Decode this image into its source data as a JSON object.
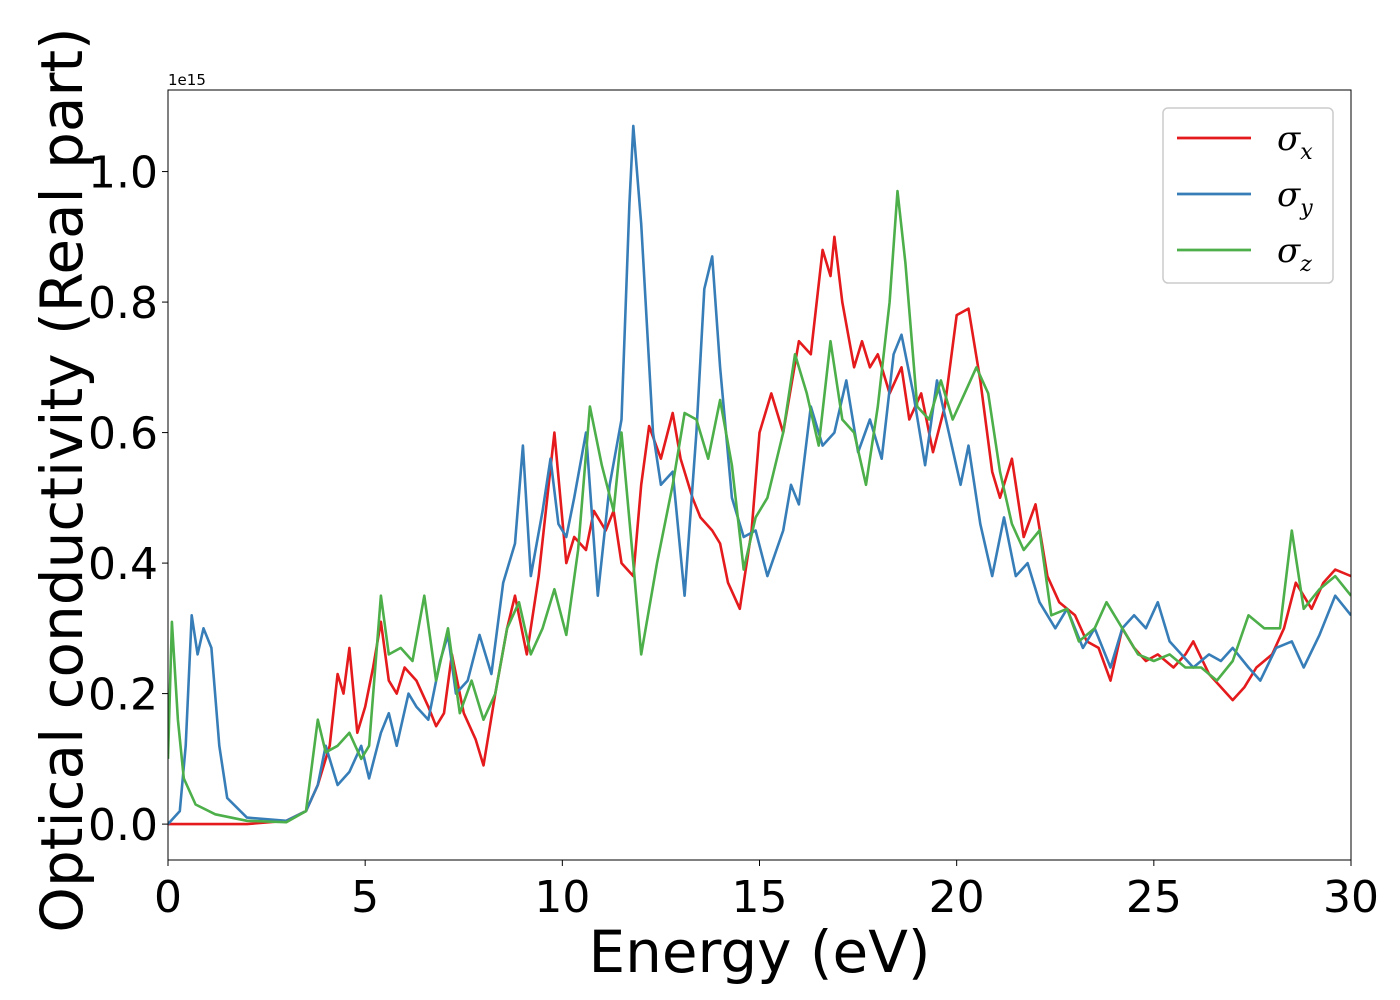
{
  "chart_data": {
    "type": "line",
    "title": "",
    "xlabel": "Energy (eV)",
    "ylabel": "Optical conductivity (Real part)",
    "y_offset_text": "1e15",
    "xlim": [
      0,
      30
    ],
    "ylim": [
      -0.055,
      1.125
    ],
    "x_ticks": [
      0,
      5,
      10,
      15,
      20,
      25,
      30
    ],
    "x_tick_labels": [
      "0",
      "5",
      "10",
      "15",
      "20",
      "25",
      "30"
    ],
    "y_ticks": [
      0.0,
      0.2,
      0.4,
      0.6,
      0.8,
      1.0
    ],
    "y_tick_labels": [
      "0.0",
      "0.2",
      "0.4",
      "0.6",
      "0.8",
      "1.0"
    ],
    "grid": false,
    "legend_position": "top-right",
    "series": [
      {
        "name": "σx",
        "symbol": "σ",
        "subscript": "x",
        "color": "#e41a1c",
        "points": [
          [
            0,
            0
          ],
          [
            1,
            0
          ],
          [
            2,
            0
          ],
          [
            3,
            0.005
          ],
          [
            3.5,
            0.02
          ],
          [
            3.8,
            0.06
          ],
          [
            4.1,
            0.12
          ],
          [
            4.3,
            0.23
          ],
          [
            4.45,
            0.2
          ],
          [
            4.6,
            0.27
          ],
          [
            4.8,
            0.14
          ],
          [
            5.0,
            0.18
          ],
          [
            5.2,
            0.24
          ],
          [
            5.4,
            0.31
          ],
          [
            5.6,
            0.22
          ],
          [
            5.8,
            0.2
          ],
          [
            6.0,
            0.24
          ],
          [
            6.3,
            0.22
          ],
          [
            6.6,
            0.18
          ],
          [
            6.8,
            0.15
          ],
          [
            7.0,
            0.17
          ],
          [
            7.2,
            0.26
          ],
          [
            7.5,
            0.17
          ],
          [
            7.8,
            0.13
          ],
          [
            8.0,
            0.09
          ],
          [
            8.3,
            0.2
          ],
          [
            8.6,
            0.3
          ],
          [
            8.8,
            0.35
          ],
          [
            9.1,
            0.26
          ],
          [
            9.4,
            0.38
          ],
          [
            9.8,
            0.6
          ],
          [
            10.1,
            0.4
          ],
          [
            10.3,
            0.44
          ],
          [
            10.6,
            0.42
          ],
          [
            10.8,
            0.48
          ],
          [
            11.1,
            0.45
          ],
          [
            11.3,
            0.48
          ],
          [
            11.5,
            0.4
          ],
          [
            11.8,
            0.38
          ],
          [
            12.0,
            0.52
          ],
          [
            12.2,
            0.61
          ],
          [
            12.5,
            0.56
          ],
          [
            12.8,
            0.63
          ],
          [
            13.0,
            0.56
          ],
          [
            13.3,
            0.5
          ],
          [
            13.5,
            0.47
          ],
          [
            13.8,
            0.45
          ],
          [
            14.0,
            0.43
          ],
          [
            14.2,
            0.37
          ],
          [
            14.5,
            0.33
          ],
          [
            14.8,
            0.45
          ],
          [
            15.0,
            0.6
          ],
          [
            15.3,
            0.66
          ],
          [
            15.6,
            0.6
          ],
          [
            16.0,
            0.74
          ],
          [
            16.3,
            0.72
          ],
          [
            16.6,
            0.88
          ],
          [
            16.8,
            0.84
          ],
          [
            16.9,
            0.9
          ],
          [
            17.1,
            0.8
          ],
          [
            17.4,
            0.7
          ],
          [
            17.6,
            0.74
          ],
          [
            17.8,
            0.7
          ],
          [
            18.0,
            0.72
          ],
          [
            18.3,
            0.66
          ],
          [
            18.6,
            0.7
          ],
          [
            18.8,
            0.62
          ],
          [
            19.1,
            0.66
          ],
          [
            19.4,
            0.57
          ],
          [
            19.7,
            0.64
          ],
          [
            20.0,
            0.78
          ],
          [
            20.3,
            0.79
          ],
          [
            20.6,
            0.68
          ],
          [
            20.9,
            0.54
          ],
          [
            21.1,
            0.5
          ],
          [
            21.4,
            0.56
          ],
          [
            21.7,
            0.44
          ],
          [
            22.0,
            0.49
          ],
          [
            22.3,
            0.38
          ],
          [
            22.6,
            0.34
          ],
          [
            23.0,
            0.32
          ],
          [
            23.3,
            0.28
          ],
          [
            23.6,
            0.27
          ],
          [
            23.9,
            0.22
          ],
          [
            24.2,
            0.3
          ],
          [
            24.5,
            0.27
          ],
          [
            24.8,
            0.25
          ],
          [
            25.1,
            0.26
          ],
          [
            25.5,
            0.24
          ],
          [
            25.8,
            0.26
          ],
          [
            26.0,
            0.28
          ],
          [
            26.4,
            0.23
          ],
          [
            26.7,
            0.21
          ],
          [
            27.0,
            0.19
          ],
          [
            27.3,
            0.21
          ],
          [
            27.6,
            0.24
          ],
          [
            28.0,
            0.26
          ],
          [
            28.3,
            0.3
          ],
          [
            28.6,
            0.37
          ],
          [
            29.0,
            0.33
          ],
          [
            29.3,
            0.37
          ],
          [
            29.6,
            0.39
          ],
          [
            30.0,
            0.38
          ]
        ]
      },
      {
        "name": "σy",
        "symbol": "σ",
        "subscript": "y",
        "color": "#377eb8",
        "points": [
          [
            0,
            0
          ],
          [
            0.3,
            0.02
          ],
          [
            0.45,
            0.12
          ],
          [
            0.6,
            0.32
          ],
          [
            0.75,
            0.26
          ],
          [
            0.9,
            0.3
          ],
          [
            1.1,
            0.27
          ],
          [
            1.3,
            0.12
          ],
          [
            1.5,
            0.04
          ],
          [
            2.0,
            0.01
          ],
          [
            3.0,
            0.005
          ],
          [
            3.5,
            0.02
          ],
          [
            3.8,
            0.06
          ],
          [
            4.0,
            0.12
          ],
          [
            4.3,
            0.06
          ],
          [
            4.6,
            0.08
          ],
          [
            4.9,
            0.12
          ],
          [
            5.1,
            0.07
          ],
          [
            5.4,
            0.14
          ],
          [
            5.6,
            0.17
          ],
          [
            5.8,
            0.12
          ],
          [
            6.1,
            0.2
          ],
          [
            6.3,
            0.18
          ],
          [
            6.6,
            0.16
          ],
          [
            6.9,
            0.25
          ],
          [
            7.1,
            0.29
          ],
          [
            7.3,
            0.2
          ],
          [
            7.6,
            0.22
          ],
          [
            7.9,
            0.29
          ],
          [
            8.2,
            0.23
          ],
          [
            8.5,
            0.37
          ],
          [
            8.8,
            0.43
          ],
          [
            9.0,
            0.58
          ],
          [
            9.2,
            0.38
          ],
          [
            9.5,
            0.48
          ],
          [
            9.7,
            0.56
          ],
          [
            9.9,
            0.46
          ],
          [
            10.1,
            0.44
          ],
          [
            10.3,
            0.5
          ],
          [
            10.6,
            0.6
          ],
          [
            10.9,
            0.35
          ],
          [
            11.2,
            0.52
          ],
          [
            11.5,
            0.62
          ],
          [
            11.7,
            0.95
          ],
          [
            11.8,
            1.07
          ],
          [
            12.0,
            0.92
          ],
          [
            12.3,
            0.6
          ],
          [
            12.5,
            0.52
          ],
          [
            12.8,
            0.54
          ],
          [
            13.1,
            0.35
          ],
          [
            13.4,
            0.6
          ],
          [
            13.6,
            0.82
          ],
          [
            13.8,
            0.87
          ],
          [
            14.0,
            0.7
          ],
          [
            14.3,
            0.5
          ],
          [
            14.6,
            0.44
          ],
          [
            14.9,
            0.45
          ],
          [
            15.2,
            0.38
          ],
          [
            15.6,
            0.45
          ],
          [
            15.8,
            0.52
          ],
          [
            16.0,
            0.49
          ],
          [
            16.3,
            0.64
          ],
          [
            16.6,
            0.58
          ],
          [
            16.9,
            0.6
          ],
          [
            17.2,
            0.68
          ],
          [
            17.5,
            0.57
          ],
          [
            17.8,
            0.62
          ],
          [
            18.1,
            0.56
          ],
          [
            18.4,
            0.72
          ],
          [
            18.6,
            0.75
          ],
          [
            18.9,
            0.66
          ],
          [
            19.2,
            0.55
          ],
          [
            19.5,
            0.68
          ],
          [
            19.8,
            0.6
          ],
          [
            20.1,
            0.52
          ],
          [
            20.3,
            0.58
          ],
          [
            20.6,
            0.46
          ],
          [
            20.9,
            0.38
          ],
          [
            21.2,
            0.47
          ],
          [
            21.5,
            0.38
          ],
          [
            21.8,
            0.4
          ],
          [
            22.1,
            0.34
          ],
          [
            22.5,
            0.3
          ],
          [
            22.8,
            0.33
          ],
          [
            23.2,
            0.27
          ],
          [
            23.5,
            0.3
          ],
          [
            23.9,
            0.24
          ],
          [
            24.2,
            0.3
          ],
          [
            24.5,
            0.32
          ],
          [
            24.8,
            0.3
          ],
          [
            25.1,
            0.34
          ],
          [
            25.4,
            0.28
          ],
          [
            25.7,
            0.26
          ],
          [
            26.0,
            0.24
          ],
          [
            26.4,
            0.26
          ],
          [
            26.7,
            0.25
          ],
          [
            27.0,
            0.27
          ],
          [
            27.4,
            0.24
          ],
          [
            27.7,
            0.22
          ],
          [
            28.1,
            0.27
          ],
          [
            28.5,
            0.28
          ],
          [
            28.8,
            0.24
          ],
          [
            29.2,
            0.29
          ],
          [
            29.6,
            0.35
          ],
          [
            30.0,
            0.32
          ]
        ]
      },
      {
        "name": "σz",
        "symbol": "σ",
        "subscript": "z",
        "color": "#4daf4a",
        "points": [
          [
            0,
            0.1
          ],
          [
            0.1,
            0.31
          ],
          [
            0.25,
            0.16
          ],
          [
            0.4,
            0.07
          ],
          [
            0.7,
            0.03
          ],
          [
            1.2,
            0.015
          ],
          [
            2.0,
            0.005
          ],
          [
            3.0,
            0.003
          ],
          [
            3.5,
            0.02
          ],
          [
            3.8,
            0.16
          ],
          [
            4.0,
            0.11
          ],
          [
            4.3,
            0.12
          ],
          [
            4.6,
            0.14
          ],
          [
            4.9,
            0.1
          ],
          [
            5.1,
            0.12
          ],
          [
            5.4,
            0.35
          ],
          [
            5.6,
            0.26
          ],
          [
            5.9,
            0.27
          ],
          [
            6.2,
            0.25
          ],
          [
            6.5,
            0.35
          ],
          [
            6.8,
            0.22
          ],
          [
            7.1,
            0.3
          ],
          [
            7.4,
            0.17
          ],
          [
            7.7,
            0.22
          ],
          [
            8.0,
            0.16
          ],
          [
            8.3,
            0.2
          ],
          [
            8.6,
            0.3
          ],
          [
            8.9,
            0.34
          ],
          [
            9.2,
            0.26
          ],
          [
            9.5,
            0.3
          ],
          [
            9.8,
            0.36
          ],
          [
            10.1,
            0.29
          ],
          [
            10.4,
            0.42
          ],
          [
            10.7,
            0.64
          ],
          [
            11.0,
            0.55
          ],
          [
            11.3,
            0.48
          ],
          [
            11.5,
            0.6
          ],
          [
            11.8,
            0.4
          ],
          [
            12.0,
            0.26
          ],
          [
            12.4,
            0.4
          ],
          [
            12.8,
            0.52
          ],
          [
            13.1,
            0.63
          ],
          [
            13.4,
            0.62
          ],
          [
            13.7,
            0.56
          ],
          [
            14.0,
            0.65
          ],
          [
            14.3,
            0.55
          ],
          [
            14.6,
            0.39
          ],
          [
            14.9,
            0.47
          ],
          [
            15.2,
            0.5
          ],
          [
            15.6,
            0.6
          ],
          [
            15.9,
            0.72
          ],
          [
            16.2,
            0.66
          ],
          [
            16.5,
            0.58
          ],
          [
            16.8,
            0.74
          ],
          [
            17.1,
            0.62
          ],
          [
            17.4,
            0.6
          ],
          [
            17.7,
            0.52
          ],
          [
            18.0,
            0.64
          ],
          [
            18.3,
            0.8
          ],
          [
            18.5,
            0.97
          ],
          [
            18.7,
            0.86
          ],
          [
            19.0,
            0.64
          ],
          [
            19.3,
            0.62
          ],
          [
            19.6,
            0.68
          ],
          [
            19.9,
            0.62
          ],
          [
            20.2,
            0.66
          ],
          [
            20.5,
            0.7
          ],
          [
            20.8,
            0.66
          ],
          [
            21.1,
            0.54
          ],
          [
            21.4,
            0.46
          ],
          [
            21.7,
            0.42
          ],
          [
            22.1,
            0.45
          ],
          [
            22.4,
            0.32
          ],
          [
            22.8,
            0.33
          ],
          [
            23.1,
            0.28
          ],
          [
            23.5,
            0.3
          ],
          [
            23.8,
            0.34
          ],
          [
            24.2,
            0.3
          ],
          [
            24.6,
            0.26
          ],
          [
            25.0,
            0.25
          ],
          [
            25.4,
            0.26
          ],
          [
            25.8,
            0.24
          ],
          [
            26.2,
            0.24
          ],
          [
            26.6,
            0.22
          ],
          [
            27.0,
            0.25
          ],
          [
            27.4,
            0.32
          ],
          [
            27.8,
            0.3
          ],
          [
            28.2,
            0.3
          ],
          [
            28.5,
            0.45
          ],
          [
            28.8,
            0.33
          ],
          [
            29.2,
            0.36
          ],
          [
            29.6,
            0.38
          ],
          [
            30.0,
            0.35
          ]
        ]
      }
    ]
  }
}
